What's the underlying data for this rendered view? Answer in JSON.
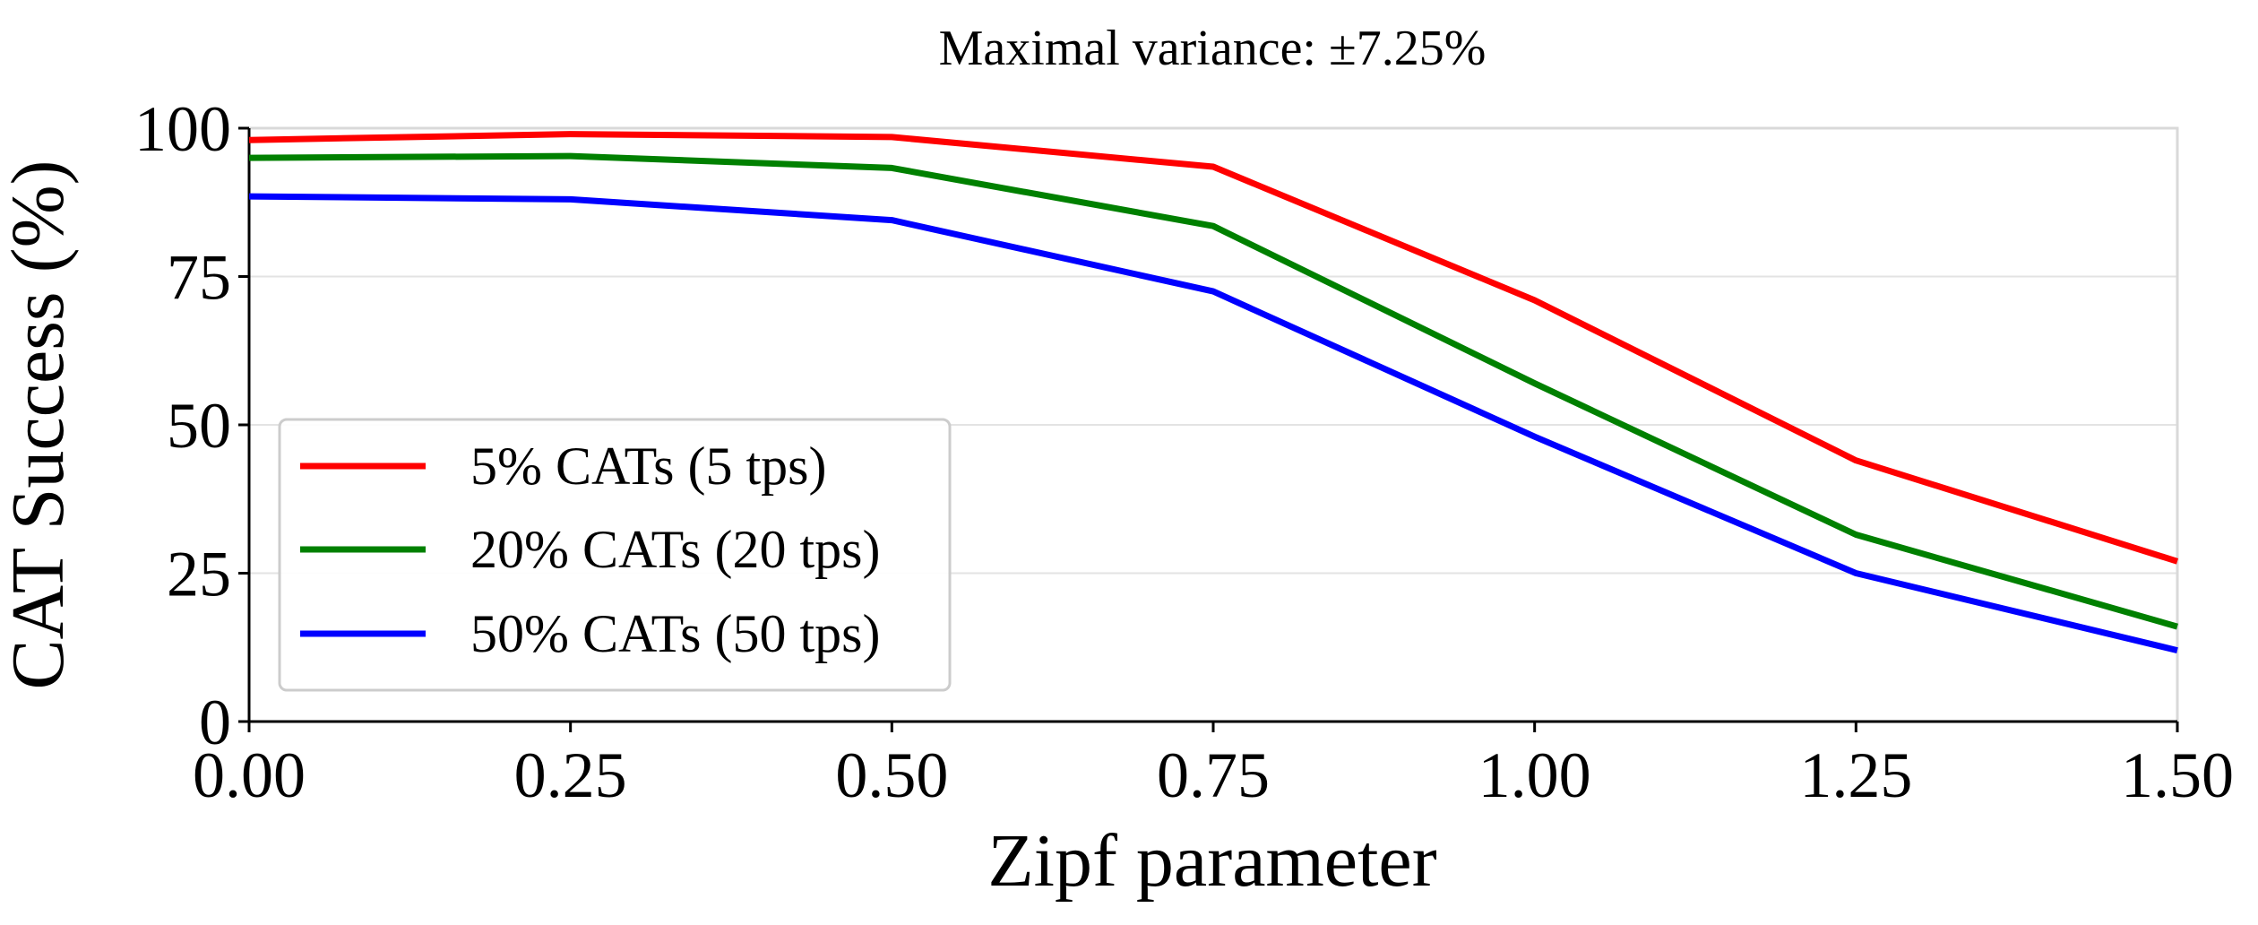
{
  "chart_data": {
    "type": "line",
    "title": "Maximal variance: ±7.25%",
    "xlabel": "Zipf parameter",
    "ylabel": "CAT Success (%)",
    "xlim": [
      0.0,
      1.5
    ],
    "ylim": [
      0,
      100
    ],
    "x": [
      0.0,
      0.25,
      0.5,
      0.75,
      1.0,
      1.25,
      1.5
    ],
    "xticks": [
      "0.00",
      "0.25",
      "0.50",
      "0.75",
      "1.00",
      "1.25",
      "1.50"
    ],
    "yticks": [
      "0",
      "25",
      "50",
      "75",
      "100"
    ],
    "grid": "horizontal",
    "legend_position": "lower-left",
    "series": [
      {
        "name": "5% CATs (5 tps)",
        "color": "#ff0000",
        "values": [
          98,
          99,
          98.5,
          93.5,
          71,
          44,
          27
        ]
      },
      {
        "name": "20% CATs (20 tps)",
        "color": "#008000",
        "values": [
          95,
          95.3,
          93.3,
          83.5,
          57,
          31.5,
          16
        ]
      },
      {
        "name": "50% CATs (50 tps)",
        "color": "#0000ff",
        "values": [
          88.5,
          88,
          84.5,
          72.5,
          48,
          25,
          12
        ]
      }
    ]
  }
}
